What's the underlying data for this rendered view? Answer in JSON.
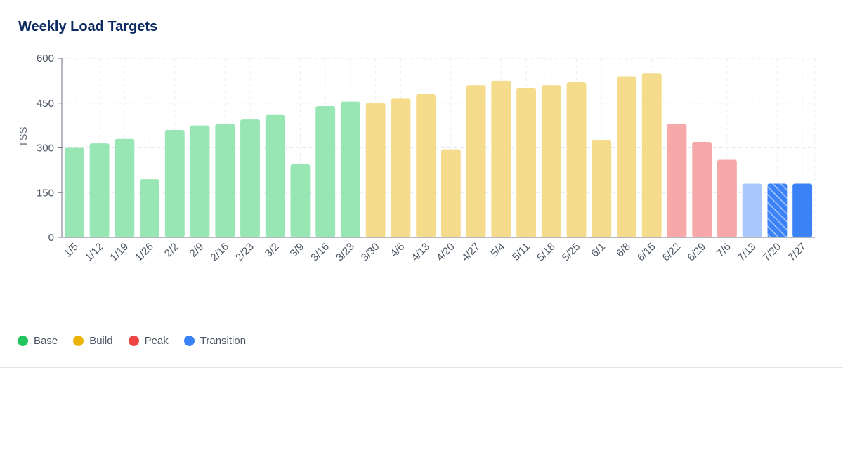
{
  "colors": {
    "Base": "#99e6b5",
    "Build": "#f5dc8d",
    "Peak": "#f7a8a8",
    "Transition_light": "#a9c8fb",
    "Transition": "#3b82f6"
  },
  "legend_colors": {
    "Base": "#22c55e",
    "Build": "#eab308",
    "Peak": "#ef4444",
    "Transition": "#3b82f6"
  },
  "chart_data": {
    "type": "bar",
    "title": "Weekly Load Targets",
    "xlabel": "",
    "ylabel": "TSS",
    "ylim": [
      0,
      600
    ],
    "yticks": [
      0,
      150,
      300,
      450,
      600
    ],
    "grid": true,
    "legend_placement": "bottom-left",
    "legend": [
      "Base",
      "Build",
      "Peak",
      "Transition"
    ],
    "categories": [
      "1/5",
      "1/12",
      "1/19",
      "1/26",
      "2/2",
      "2/9",
      "2/16",
      "2/23",
      "3/2",
      "3/9",
      "3/16",
      "3/23",
      "3/30",
      "4/6",
      "4/13",
      "4/20",
      "4/27",
      "5/4",
      "5/11",
      "5/18",
      "5/25",
      "6/1",
      "6/8",
      "6/15",
      "6/22",
      "6/29",
      "7/6",
      "7/13",
      "7/20",
      "7/27"
    ],
    "values": [
      300,
      315,
      330,
      195,
      360,
      375,
      380,
      395,
      410,
      245,
      440,
      455,
      450,
      465,
      480,
      295,
      510,
      525,
      500,
      510,
      520,
      325,
      540,
      550,
      380,
      320,
      260,
      180,
      180,
      180
    ],
    "phases": [
      "Base",
      "Base",
      "Base",
      "Base",
      "Base",
      "Base",
      "Base",
      "Base",
      "Base",
      "Base",
      "Base",
      "Base",
      "Build",
      "Build",
      "Build",
      "Build",
      "Build",
      "Build",
      "Build",
      "Build",
      "Build",
      "Build",
      "Build",
      "Build",
      "Peak",
      "Peak",
      "Peak",
      "Transition",
      "Transition",
      "Transition"
    ],
    "styles": [
      "normal",
      "normal",
      "normal",
      "normal",
      "normal",
      "normal",
      "normal",
      "normal",
      "normal",
      "normal",
      "normal",
      "normal",
      "normal",
      "normal",
      "normal",
      "normal",
      "normal",
      "normal",
      "normal",
      "normal",
      "normal",
      "normal",
      "normal",
      "normal",
      "normal",
      "normal",
      "normal",
      "light",
      "hatched",
      "solid"
    ]
  }
}
